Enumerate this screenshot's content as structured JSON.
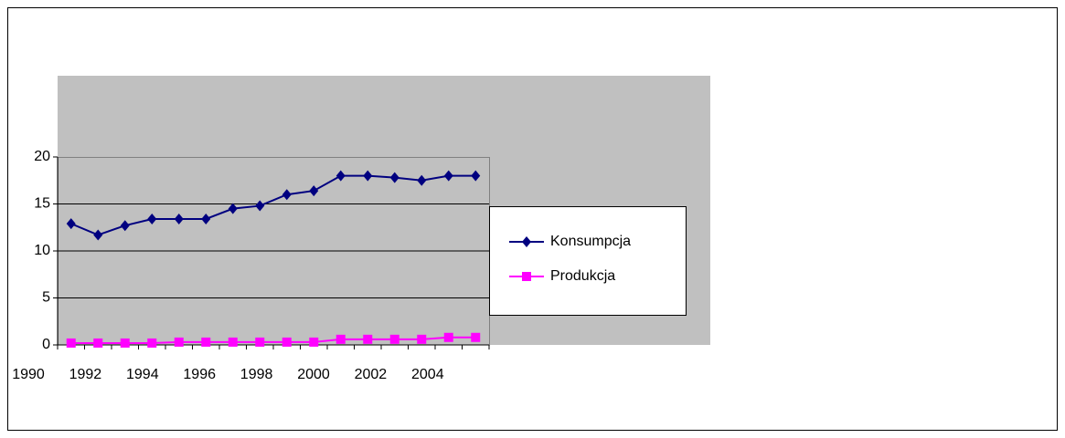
{
  "chart_data": {
    "type": "line",
    "categories": [
      "1990",
      null,
      "1992",
      null,
      "1994",
      null,
      "1996",
      null,
      "1998",
      null,
      "2000",
      null,
      "2002",
      null,
      "2004",
      null
    ],
    "series": [
      {
        "name": "Konsumpcja",
        "color": "#000080",
        "marker": "diamond",
        "values": [
          12.9,
          11.7,
          12.7,
          13.4,
          13.4,
          13.4,
          14.5,
          14.8,
          16.0,
          16.4,
          18.0,
          18.0,
          17.8,
          17.5,
          18.0,
          18.0
        ]
      },
      {
        "name": "Produkcja",
        "color": "#ff00ff",
        "marker": "square",
        "values": [
          0.2,
          0.2,
          0.2,
          0.2,
          0.3,
          0.3,
          0.3,
          0.3,
          0.3,
          0.3,
          0.6,
          0.6,
          0.6,
          0.6,
          0.8,
          0.8
        ]
      }
    ],
    "ylim": [
      0,
      20
    ],
    "yticks": [
      0,
      5,
      10,
      15,
      20
    ],
    "grid": true,
    "legend": "right"
  }
}
